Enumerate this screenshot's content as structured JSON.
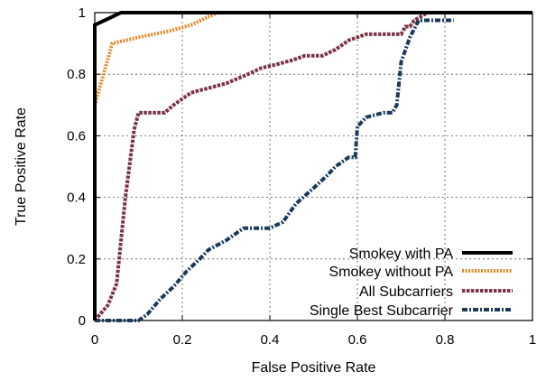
{
  "chart_data": {
    "type": "line",
    "xlabel": "False Positive Rate",
    "ylabel": "True Positive Rate",
    "xlim": [
      0,
      1
    ],
    "ylim": [
      0,
      1
    ],
    "x_ticks": [
      0,
      0.2,
      0.4,
      0.6,
      0.8,
      1
    ],
    "x_tick_labels": [
      "0",
      "0.2",
      "0.4",
      "0.6",
      "0.8",
      "1"
    ],
    "y_ticks": [
      0,
      0.2,
      0.4,
      0.6,
      0.8,
      1
    ],
    "y_tick_labels": [
      "0",
      "0.2",
      "0.4",
      "0.6",
      "0.8",
      "1"
    ],
    "grid": true,
    "legend_position": "bottom-right",
    "series": [
      {
        "name": "Smokey with PA",
        "color": "#000000",
        "style": "solid",
        "x": [
          0,
          0,
          0.06,
          1
        ],
        "y": [
          0,
          0.96,
          1,
          1
        ]
      },
      {
        "name": "Smokey without PA",
        "color": "#e08a2a",
        "style": "dotted",
        "x": [
          0,
          0,
          0.01,
          0.04,
          0.1,
          0.17,
          0.22,
          0.25,
          0.28,
          0.3,
          0.4,
          0.6,
          0.8,
          1
        ],
        "y": [
          0,
          0.7,
          0.75,
          0.9,
          0.92,
          0.94,
          0.96,
          0.98,
          1,
          1,
          1,
          1,
          1,
          1
        ]
      },
      {
        "name": "All Subcarriers",
        "color": "#7a3344",
        "style": "dashed",
        "x": [
          0,
          0.03,
          0.05,
          0.07,
          0.09,
          0.1,
          0.12,
          0.16,
          0.18,
          0.22,
          0.3,
          0.35,
          0.38,
          0.41,
          0.45,
          0.48,
          0.52,
          0.55,
          0.58,
          0.62,
          0.65,
          0.67,
          0.7,
          0.71,
          0.72,
          0.73,
          0.76,
          0.8,
          1
        ],
        "y": [
          0,
          0.05,
          0.12,
          0.4,
          0.62,
          0.675,
          0.675,
          0.675,
          0.7,
          0.74,
          0.77,
          0.8,
          0.82,
          0.83,
          0.845,
          0.86,
          0.86,
          0.88,
          0.91,
          0.93,
          0.93,
          0.93,
          0.93,
          0.955,
          0.955,
          0.975,
          1,
          1,
          1
        ]
      },
      {
        "name": "Single Best Subcarrier",
        "color": "#1a3a5c",
        "style": "dash-dot",
        "x": [
          0,
          0.02,
          0.1,
          0.12,
          0.15,
          0.18,
          0.21,
          0.24,
          0.26,
          0.3,
          0.34,
          0.4,
          0.43,
          0.46,
          0.5,
          0.53,
          0.55,
          0.58,
          0.595,
          0.6,
          0.62,
          0.66,
          0.68,
          0.69,
          0.7,
          0.72,
          0.74,
          0.8,
          0.82
        ],
        "y": [
          0,
          0,
          0,
          0.02,
          0.07,
          0.11,
          0.16,
          0.2,
          0.23,
          0.26,
          0.3,
          0.3,
          0.32,
          0.38,
          0.43,
          0.47,
          0.5,
          0.53,
          0.53,
          0.63,
          0.66,
          0.675,
          0.675,
          0.7,
          0.84,
          0.92,
          0.975,
          0.975,
          0.975
        ]
      }
    ]
  }
}
